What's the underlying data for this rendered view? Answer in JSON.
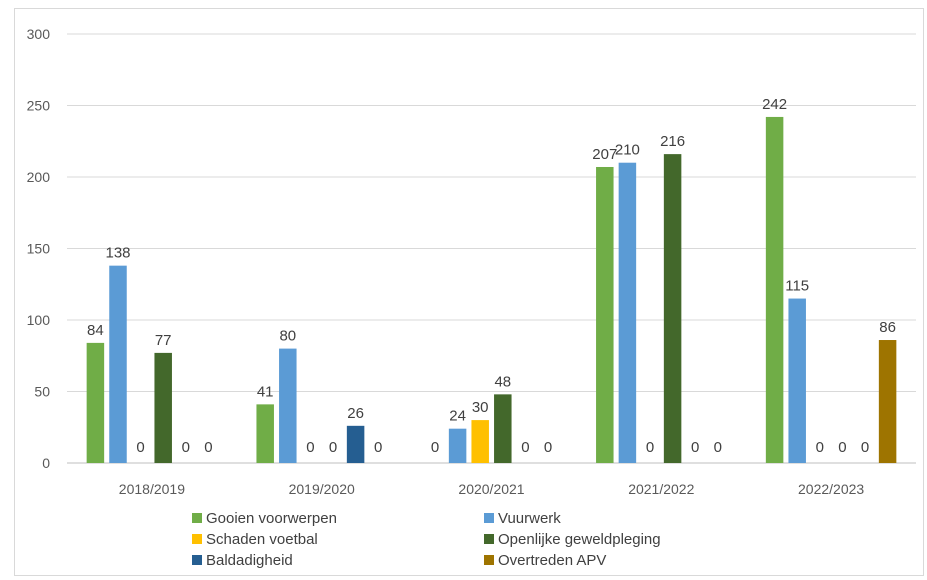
{
  "chart_data": {
    "type": "bar",
    "categories": [
      "2018/2019",
      "2019/2020",
      "2020/2021",
      "2021/2022",
      "2022/2023"
    ],
    "ylim": [
      0,
      300
    ],
    "yticks": [
      0,
      50,
      100,
      150,
      200,
      250,
      300
    ],
    "grid": true,
    "legend_position": "bottom",
    "series": [
      {
        "name": "Gooien voorwerpen",
        "color": "#70ad47",
        "values": [
          84,
          41,
          0,
          207,
          242
        ]
      },
      {
        "name": "Vuurwerk",
        "color": "#5b9bd5",
        "values": [
          138,
          80,
          24,
          210,
          115
        ]
      },
      {
        "name": "Schaden voetbal",
        "color": "#ffc000",
        "values": [
          0,
          0,
          30,
          0,
          0
        ]
      },
      {
        "name": "Openlijke geweldpleging",
        "color": "#43682b",
        "values": [
          77,
          0,
          48,
          216,
          0
        ]
      },
      {
        "name": "Baldadigheid",
        "color": "#255e91",
        "values": [
          0,
          26,
          0,
          0,
          0
        ]
      },
      {
        "name": "Overtreden APV",
        "color": "#9e7400",
        "values": [
          0,
          0,
          0,
          0,
          86
        ]
      }
    ]
  }
}
